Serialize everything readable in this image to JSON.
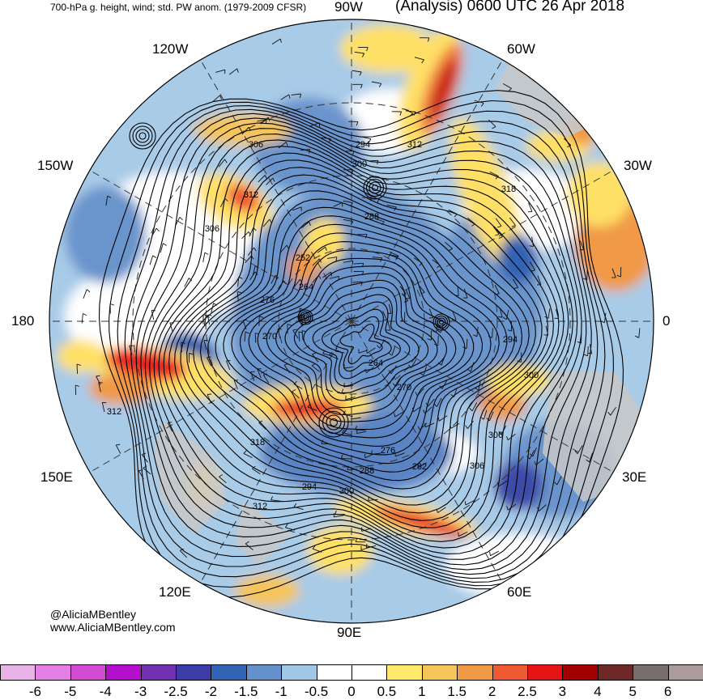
{
  "header": {
    "left_title": "700-hPa g. height, wind; std. PW anom. (1979-2009 CFSR)",
    "right_title": "(Analysis) 0600 UTC 26 Apr 2018"
  },
  "longitude_labels": [
    {
      "id": "90w",
      "text": "90W"
    },
    {
      "id": "60w",
      "text": "60W"
    },
    {
      "id": "30w",
      "text": "30W"
    },
    {
      "id": "0",
      "text": "0"
    },
    {
      "id": "30e",
      "text": "30E"
    },
    {
      "id": "60e",
      "text": "60E"
    },
    {
      "id": "90e",
      "text": "90E"
    },
    {
      "id": "120e",
      "text": "120E"
    },
    {
      "id": "150e",
      "text": "150E"
    },
    {
      "id": "180",
      "text": "180"
    },
    {
      "id": "150w",
      "text": "150W"
    },
    {
      "id": "120w",
      "text": "120W"
    }
  ],
  "contour_labels": [
    "306",
    "294",
    "300",
    "312",
    "312",
    "306",
    "318",
    "288",
    "252",
    "264",
    "276",
    "270",
    "264",
    "270",
    "294",
    "300",
    "306",
    "318",
    "276",
    "282",
    "288",
    "294",
    "300",
    "306",
    "312",
    "312"
  ],
  "credit": {
    "handle": "@AliciaMBentley",
    "website": "www.AliciaMBentley.com"
  },
  "colorbar": {
    "boxes": [
      "#e8b4e8",
      "#e57ee5",
      "#d24dd2",
      "#b20fcc",
      "#7030b0",
      "#3c3ca8",
      "#3264b4",
      "#6490cc",
      "#a0c8e6",
      "#ffffff",
      "#ffffff",
      "#ffea6c",
      "#f5c55a",
      "#f09a46",
      "#f05a32",
      "#e61414",
      "#a00000",
      "#6e2828",
      "#786e6e",
      "#aa9c9c"
    ],
    "labels": [
      "-6",
      "-5",
      "-4",
      "-3",
      "-2.5",
      "-2",
      "-1.5",
      "-1",
      "-0.5",
      "0",
      "0.5",
      "1",
      "1.5",
      "2",
      "2.5",
      "3",
      "4",
      "5",
      "6"
    ]
  },
  "colors": {
    "land": "#c8c8c8",
    "contour": "#000000",
    "gridline": "#333333"
  }
}
